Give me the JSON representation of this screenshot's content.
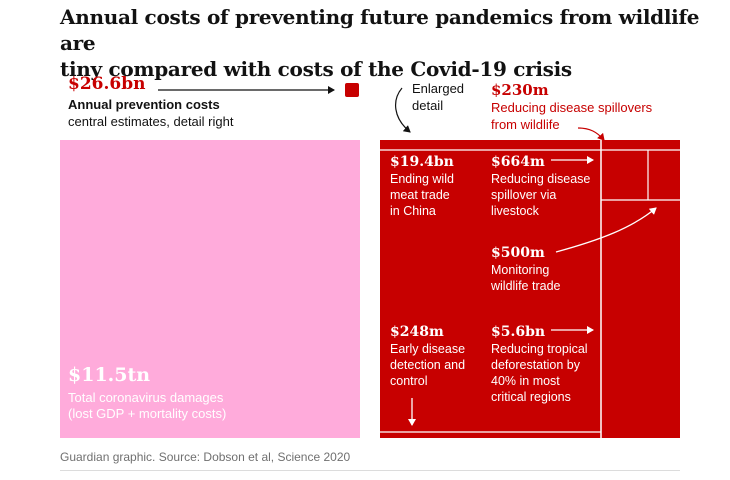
{
  "title_lines": [
    "Annual costs of preventing future pandemics from wildlife are",
    "tiny compared with costs of the Covid-19 crisis"
  ],
  "prevention": {
    "value": "$26.6bn",
    "label_line1": "Annual prevention costs",
    "label_line2": "central estimates, detail right"
  },
  "enlarged": {
    "line1": "Enlarged",
    "line2": "detail"
  },
  "spillover": {
    "value": "$230m",
    "label_line1": "Reducing disease spillovers",
    "label_line2": "from wildlife"
  },
  "damages": {
    "value": "$11.5tn",
    "label_line1": "Total coronavirus damages",
    "label_line2": "(lost GDP + mortality costs)"
  },
  "chart_data": {
    "type": "treemap",
    "title": "Annual costs of preventing future pandemics from wildlife are tiny compared with costs of the Covid-19 crisis",
    "unit": "US$",
    "comparison": [
      {
        "name": "Total coronavirus damages (lost GDP + mortality costs)",
        "value": 11500000000000,
        "label": "$11.5tn"
      },
      {
        "name": "Annual prevention costs",
        "value": 26600000000,
        "label": "$26.6bn"
      }
    ],
    "detail": [
      {
        "value_label": "$19.4bn",
        "lines": [
          "Ending wild",
          "meat trade",
          "in China"
        ],
        "value": 19400000000
      },
      {
        "value_label": "$664m",
        "lines": [
          "Reducing disease",
          "spillover via",
          "livestock"
        ],
        "value": 664000000
      },
      {
        "value_label": "$500m",
        "lines": [
          "Monitoring",
          "wildlife trade"
        ],
        "value": 500000000
      },
      {
        "value_label": "$248m",
        "lines": [
          "Early disease",
          "detection and",
          "control"
        ],
        "value": 248000000
      },
      {
        "value_label": "$5.6bn",
        "lines": [
          "Reducing tropical",
          "deforestation by",
          "40% in most",
          "critical regions"
        ],
        "value": 5600000000
      },
      {
        "value_label": "$230m",
        "lines": [
          "Reducing disease spillovers",
          "from wildlife"
        ],
        "value": 230000000
      }
    ],
    "colors": {
      "damages": "#ffabdb",
      "prevention": "#c70000",
      "dividers": "#ffffff",
      "accent_text": "#c70000"
    }
  },
  "footer": "Guardian graphic. Source: Dobson et al, Science 2020"
}
